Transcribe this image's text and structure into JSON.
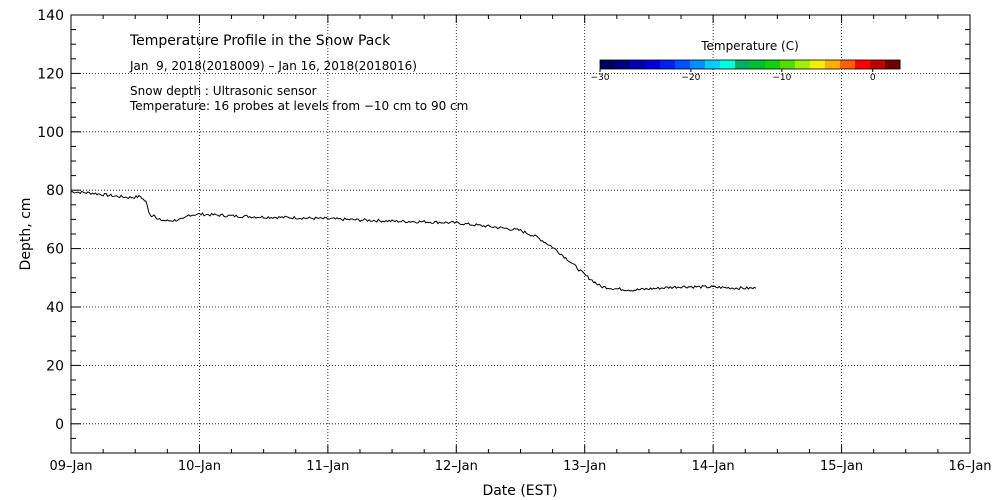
{
  "chart_data": {
    "type": "line",
    "title": "Temperature Profile in the Snow Pack",
    "subtitle": "Jan  9, 2018(2018009) – Jan 16, 2018(2018016)",
    "annotations": [
      "Snow depth : Ultrasonic sensor",
      "Temperature: 16 probes at levels from −10 cm to 90 cm"
    ],
    "xlabel": "Date (EST)",
    "ylabel": "Depth, cm",
    "xlim": [
      "2018-01-09",
      "2018-01-16"
    ],
    "ylim": [
      -10,
      140
    ],
    "x_ticks": [
      "09–Jan",
      "10–Jan",
      "11–Jan",
      "12–Jan",
      "13–Jan",
      "14–Jan",
      "15–Jan",
      "16–Jan"
    ],
    "y_ticks": [
      "0",
      "20",
      "40",
      "60",
      "80",
      "100",
      "120",
      "140"
    ],
    "grid": true,
    "series": [
      {
        "x": [
          "2018-01-09 00:00",
          "2018-01-09 04:00",
          "2018-01-09 08:00",
          "2018-01-09 11:00",
          "2018-01-09 13:00",
          "2018-01-09 14:00",
          "2018-01-09 14:30",
          "2018-01-09 15:00",
          "2018-01-09 15:30",
          "2018-01-09 16:00",
          "2018-01-09 18:00",
          "2018-01-09 21:00",
          "2018-01-09 22:00",
          "2018-01-10 00:00",
          "2018-01-10 06:00",
          "2018-01-10 12:00",
          "2018-01-10 18:00",
          "2018-01-11 00:00",
          "2018-01-11 06:00",
          "2018-01-11 12:00",
          "2018-01-11 18:00",
          "2018-01-12 00:00",
          "2018-01-12 04:00",
          "2018-01-12 08:00",
          "2018-01-12 12:00",
          "2018-01-12 15:00",
          "2018-01-12 18:00",
          "2018-01-12 21:00",
          "2018-01-13 00:00",
          "2018-01-13 03:00",
          "2018-01-13 06:00",
          "2018-01-13 09:00",
          "2018-01-13 12:00",
          "2018-01-13 18:00",
          "2018-01-14 00:00",
          "2018-01-14 04:00",
          "2018-01-14 08:00"
        ],
        "y": [
          79.5,
          79,
          78,
          77.5,
          77.8,
          76,
          73,
          71,
          72,
          70,
          69.5,
          70,
          71.5,
          71.8,
          71.2,
          70.8,
          70.6,
          70.2,
          69.8,
          69.4,
          69.2,
          68.8,
          68,
          67.2,
          66.2,
          64,
          60.5,
          56,
          51,
          47,
          46.2,
          45.8,
          46.2,
          47,
          46.8,
          46.5,
          46.4
        ]
      }
    ],
    "colorbar": {
      "title": "Temperature (C)",
      "range": [
        -30,
        3
      ],
      "tick_labels": [
        "−30",
        "−20",
        "−10",
        "0"
      ],
      "tick_values": [
        -30,
        -20,
        -10,
        0
      ],
      "colors": [
        "#000060",
        "#000080",
        "#0000b0",
        "#0000d8",
        "#0020f0",
        "#0050ff",
        "#0090ff",
        "#00d0ff",
        "#00ffe0",
        "#00b060",
        "#00c030",
        "#10d010",
        "#50e000",
        "#a0f000",
        "#f0f000",
        "#ffb000",
        "#ff6000",
        "#ff0000",
        "#c00000",
        "#700000"
      ]
    }
  }
}
